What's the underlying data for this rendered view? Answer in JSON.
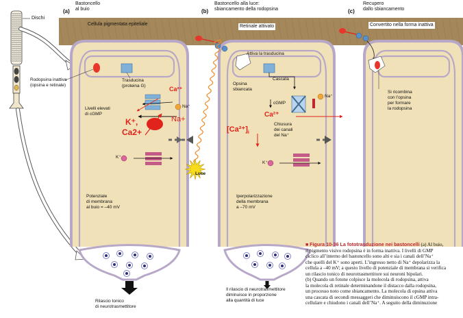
{
  "panels": {
    "a": {
      "letter": "(a)",
      "title": [
        "Bastoncello",
        "al buio"
      ]
    },
    "b": {
      "letter": "(b)",
      "title": [
        "Bastoncello alla luce:",
        "sbiancamento della rodopsina"
      ]
    },
    "c": {
      "letter": "(c)",
      "title": [
        "Recupero",
        "dallo sbiancamento"
      ]
    }
  },
  "labels": {
    "dischi": "Dischi",
    "epithelium": "Cellula pigmentata epiteliale",
    "rhodopsin_inactive": [
      "Rodopsina inattiva",
      "(opsina e retinale)"
    ],
    "transducin": [
      "Trasducina",
      "(proteina G)"
    ],
    "cgmp_high": [
      "Livelli elevati",
      "di cGMP"
    ],
    "potential_dark": [
      "Potenziale",
      "di membrana",
      "al buio = –40 mV"
    ],
    "release_tonic": [
      "Rilascio tonico",
      "di neurotrasmettitore"
    ],
    "retinal_active": "Retinale attivato",
    "activates_transducin": "Attiva la trasducina",
    "opsin_bleached": [
      "Opsina",
      "sbiancata"
    ],
    "cascade": "Cascata",
    "cgmp_down": "cGMP",
    "channels_close": [
      "Chiusura",
      "dei canali",
      "del Na⁺"
    ],
    "hyperpol": [
      "Iperpolarizzazione",
      "della membrana",
      "a –70 mV"
    ],
    "light": "Luce",
    "release_reduced": [
      "Il rilascio di neurotrasmettitore",
      "diminuisce in proporzione",
      "alla quantità di luce"
    ],
    "converted": "Convertito nella forma inattiva",
    "recombines": [
      "Si ricombina",
      "con l’opsina",
      "per formare",
      "la rodopsina"
    ],
    "na_plus": "Na⁺",
    "k_plus": "K⁺",
    "ca_small_a": "Ca²⁺",
    "ca_small_b": "Ca²⁺",
    "ca_bracket": "[Ca²⁺]",
    "ca_bracket_sub": "i",
    "red_na": "Na+",
    "red_k": "K⁺,",
    "red_ca": "Ca2+"
  },
  "caption": {
    "title": "Figura 10-36  La fototrasduzione nei bastoncelli",
    "lines": [
      "(a) Al buio,",
      "il pigmento visivo rodopsina è in forma inattiva. I livelli di GMP",
      "ciclico all’interno del bastoncello sono alti e sia i canali dell’Na⁺",
      "che quelli del K⁺ sono aperti. L’ingresso netto di Na⁺ depolarizza la",
      "cellula a –40 mV; a questo livello di potenziale di membrana si verifica",
      "un rilascio tonico di neurotrasmettitore sui neuroni bipolari.",
      "(b) Quando un fotone colpisce la molecola di rodopsina, attiva",
      "la molecola di retinale determinandone il distacco dalla rodopsina,",
      "un processo noto come sbiancamento. La molecola di opsina attiva",
      "una cascata di secondi messaggeri che diminuiscono il cGMP intra-",
      "cellulare e chiudono i canali dell’Na⁺. A seguito della diminuzione"
    ]
  },
  "colors": {
    "epithelium": "#a4875a",
    "cell_fill": "#f1e1b9",
    "cell_border": "#b7a8c8",
    "annotation_red": "#e0231b",
    "rhodopsin": "#e8362a",
    "transducin": "#7fb1d9",
    "channel": "#c45a86",
    "light": "#f7dc1e"
  }
}
